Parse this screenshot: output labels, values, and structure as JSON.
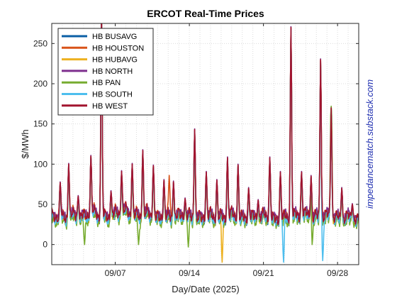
{
  "chart_data": {
    "type": "line",
    "title": "ERCOT Real-Time Prices",
    "xlabel": "Day/Date (2025)",
    "ylabel": "$/MWh",
    "watermark": "impedancematch.substack.com",
    "xlim": [
      0,
      29
    ],
    "ylim": [
      -25,
      275
    ],
    "x_unit_note": "",
    "xticks": [
      {
        "value": 6,
        "label": "09/07"
      },
      {
        "value": 13,
        "label": "09/14"
      },
      {
        "value": 20,
        "label": "09/21"
      },
      {
        "value": 27,
        "label": "09/28"
      }
    ],
    "yticks": [
      0,
      50,
      100,
      150,
      200,
      250
    ],
    "grid": true,
    "legend_position": "top-left",
    "baseline": {
      "x": [
        0,
        0.5,
        1,
        1.5,
        2,
        2.5,
        3,
        3.5,
        4,
        4.5,
        5,
        5.5,
        6,
        6.5,
        7,
        7.5,
        8,
        8.5,
        9,
        9.5,
        10,
        10.5,
        11,
        11.5,
        12,
        12.5,
        13,
        13.5,
        14,
        14.5,
        15,
        15.5,
        16,
        16.5,
        17,
        17.5,
        18,
        18.5,
        19,
        19.5,
        20,
        20.5,
        21,
        21.5,
        22,
        22.5,
        23,
        23.5,
        24,
        24.5,
        25,
        25.5,
        26,
        26.5,
        27,
        27.5,
        28,
        28.5,
        29
      ],
      "y": [
        40,
        30,
        38,
        28,
        42,
        30,
        40,
        32,
        45,
        30,
        40,
        28,
        44,
        33,
        48,
        30,
        42,
        28,
        45,
        30,
        38,
        28,
        40,
        27,
        42,
        30,
        40,
        26,
        38,
        28,
        42,
        25,
        40,
        27,
        44,
        26,
        38,
        28,
        40,
        27,
        42,
        28,
        36,
        26,
        40,
        25,
        42,
        30,
        44,
        28,
        40,
        27,
        42,
        30,
        38,
        26,
        40,
        28,
        35
      ]
    },
    "peaks": [
      {
        "x": 0.8,
        "y": 77
      },
      {
        "x": 1.6,
        "y": 100
      },
      {
        "x": 2.5,
        "y": 60
      },
      {
        "x": 3.7,
        "y": 110
      },
      {
        "x": 4.7,
        "y": 290
      },
      {
        "x": 5.6,
        "y": 66
      },
      {
        "x": 6.6,
        "y": 91
      },
      {
        "x": 7.6,
        "y": 100
      },
      {
        "x": 8.6,
        "y": 117
      },
      {
        "x": 9.6,
        "y": 98
      },
      {
        "x": 10.6,
        "y": 80
      },
      {
        "x": 11.5,
        "y": 78
      },
      {
        "x": 12.6,
        "y": 57
      },
      {
        "x": 13.5,
        "y": 143
      },
      {
        "x": 14.6,
        "y": 90
      },
      {
        "x": 15.6,
        "y": 80
      },
      {
        "x": 16.6,
        "y": 108
      },
      {
        "x": 17.6,
        "y": 99
      },
      {
        "x": 18.6,
        "y": 70
      },
      {
        "x": 19.5,
        "y": 55
      },
      {
        "x": 20.6,
        "y": 108
      },
      {
        "x": 21.6,
        "y": 90
      },
      {
        "x": 22.6,
        "y": 270
      },
      {
        "x": 23.6,
        "y": 90
      },
      {
        "x": 24.5,
        "y": 85
      },
      {
        "x": 25.4,
        "y": 230
      },
      {
        "x": 26.4,
        "y": 170
      },
      {
        "x": 27.4,
        "y": 70
      },
      {
        "x": 28.4,
        "y": 50
      }
    ],
    "series": [
      {
        "name": "HB BUSAVG",
        "color": "#0b5fa5",
        "offset": -1.5,
        "extras": []
      },
      {
        "name": "HB HOUSTON",
        "color": "#d95319",
        "offset": 0.5,
        "extras": [
          {
            "x": 11.1,
            "y": 86
          }
        ]
      },
      {
        "name": "HB HUBAVG",
        "color": "#edb120",
        "offset": -1.0,
        "extras": [
          {
            "x": 16.1,
            "y": -22
          }
        ]
      },
      {
        "name": "HB NORTH",
        "color": "#7e2f8e",
        "offset": 1.0,
        "extras": []
      },
      {
        "name": "HB PAN",
        "color": "#77ac30",
        "offset": -6.0,
        "extras": [
          {
            "x": 3.1,
            "y": 0
          },
          {
            "x": 8.2,
            "y": 0
          },
          {
            "x": 12.9,
            "y": -3
          },
          {
            "x": 24.6,
            "y": 0
          },
          {
            "x": 26.4,
            "y": 172
          }
        ]
      },
      {
        "name": "HB SOUTH",
        "color": "#4dbeee",
        "offset": -3.0,
        "extras": [
          {
            "x": 21.9,
            "y": -22
          },
          {
            "x": 25.6,
            "y": -20
          }
        ]
      },
      {
        "name": "HB WEST",
        "color": "#a2142f",
        "offset": 0.0,
        "extras": []
      }
    ]
  }
}
